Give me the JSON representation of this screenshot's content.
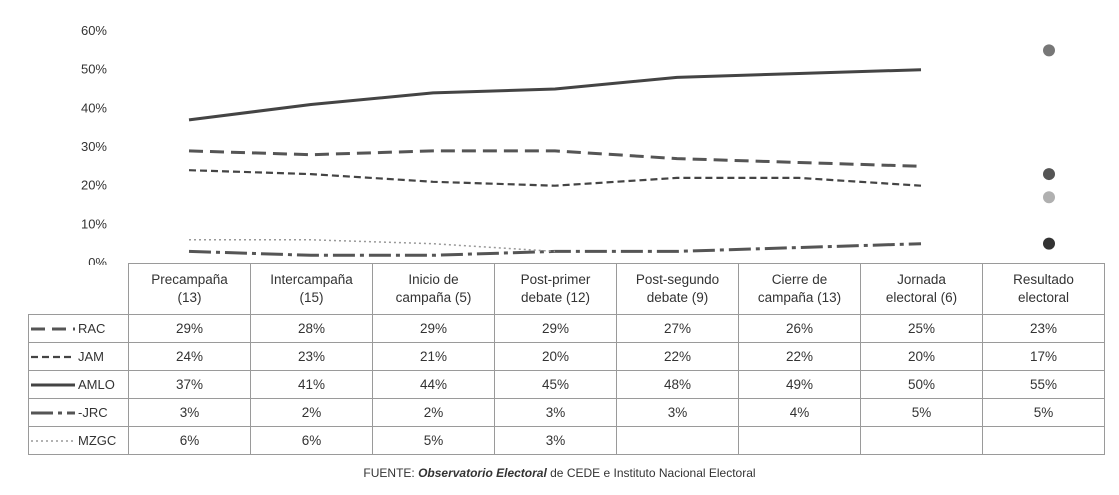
{
  "chart_data": {
    "type": "line",
    "categories": [
      "Precampaña (13)",
      "Intercampaña (15)",
      "Inicio de campaña (5)",
      "Post-primer debate (12)",
      "Post-segundo debate (9)",
      "Cierre de campaña (13)",
      "Jornada electoral (6)",
      "Resultado electoral"
    ],
    "category_lines": [
      [
        "Precampaña",
        "(13)"
      ],
      [
        "Intercampaña",
        "(15)"
      ],
      [
        "Inicio de",
        "campaña (5)"
      ],
      [
        "Post-primer",
        "debate (12)"
      ],
      [
        "Post-segundo",
        "debate (9)"
      ],
      [
        "Cierre de",
        "campaña (13)"
      ],
      [
        "Jornada",
        "electoral (6)"
      ],
      [
        "Resultado",
        "electoral"
      ]
    ],
    "y_ticks": [
      "60%",
      "50%",
      "40%",
      "30%",
      "20%",
      "10%",
      "0%"
    ],
    "ylim": [
      0,
      60
    ],
    "series": [
      {
        "name": "RAC",
        "values": [
          29,
          28,
          29,
          29,
          27,
          26,
          25,
          23
        ],
        "labels": [
          "29%",
          "28%",
          "29%",
          "29%",
          "27%",
          "26%",
          "25%",
          "23%"
        ],
        "color": "#555555",
        "dash": "14,7",
        "width": 3,
        "marker_color": "#555555"
      },
      {
        "name": "JAM",
        "values": [
          24,
          23,
          21,
          20,
          22,
          22,
          20,
          17
        ],
        "labels": [
          "24%",
          "23%",
          "21%",
          "20%",
          "22%",
          "22%",
          "20%",
          "17%"
        ],
        "color": "#444444",
        "dash": "7,4",
        "width": 2.2,
        "marker_color": "#b0b0b0"
      },
      {
        "name": "AMLO",
        "values": [
          37,
          41,
          44,
          45,
          48,
          49,
          50,
          55
        ],
        "labels": [
          "37%",
          "41%",
          "44%",
          "45%",
          "48%",
          "49%",
          "50%",
          "55%"
        ],
        "color": "#444444",
        "dash": "",
        "width": 3,
        "marker_color": "#777777"
      },
      {
        "name": "JRC",
        "values": [
          3,
          2,
          2,
          3,
          3,
          4,
          5,
          5
        ],
        "labels": [
          "3%",
          "2%",
          "2%",
          "3%",
          "3%",
          "4%",
          "5%",
          "5%"
        ],
        "legend_label": "-JRC",
        "color": "#555555",
        "dash": "22,5,4,5",
        "width": 3,
        "marker_color": "#333333"
      },
      {
        "name": "MZGC",
        "values": [
          6,
          6,
          5,
          3,
          null,
          null,
          null,
          null
        ],
        "labels": [
          "6%",
          "6%",
          "5%",
          "3%",
          "",
          "",
          "",
          ""
        ],
        "color": "#999999",
        "dash": "2,3",
        "width": 1.5,
        "marker_color": ""
      }
    ],
    "source_prefix": "FUENTE: ",
    "source_emph": "Observatorio Electoral",
    "source_suffix": " de CEDE  e Instituto Nacional Electoral"
  }
}
